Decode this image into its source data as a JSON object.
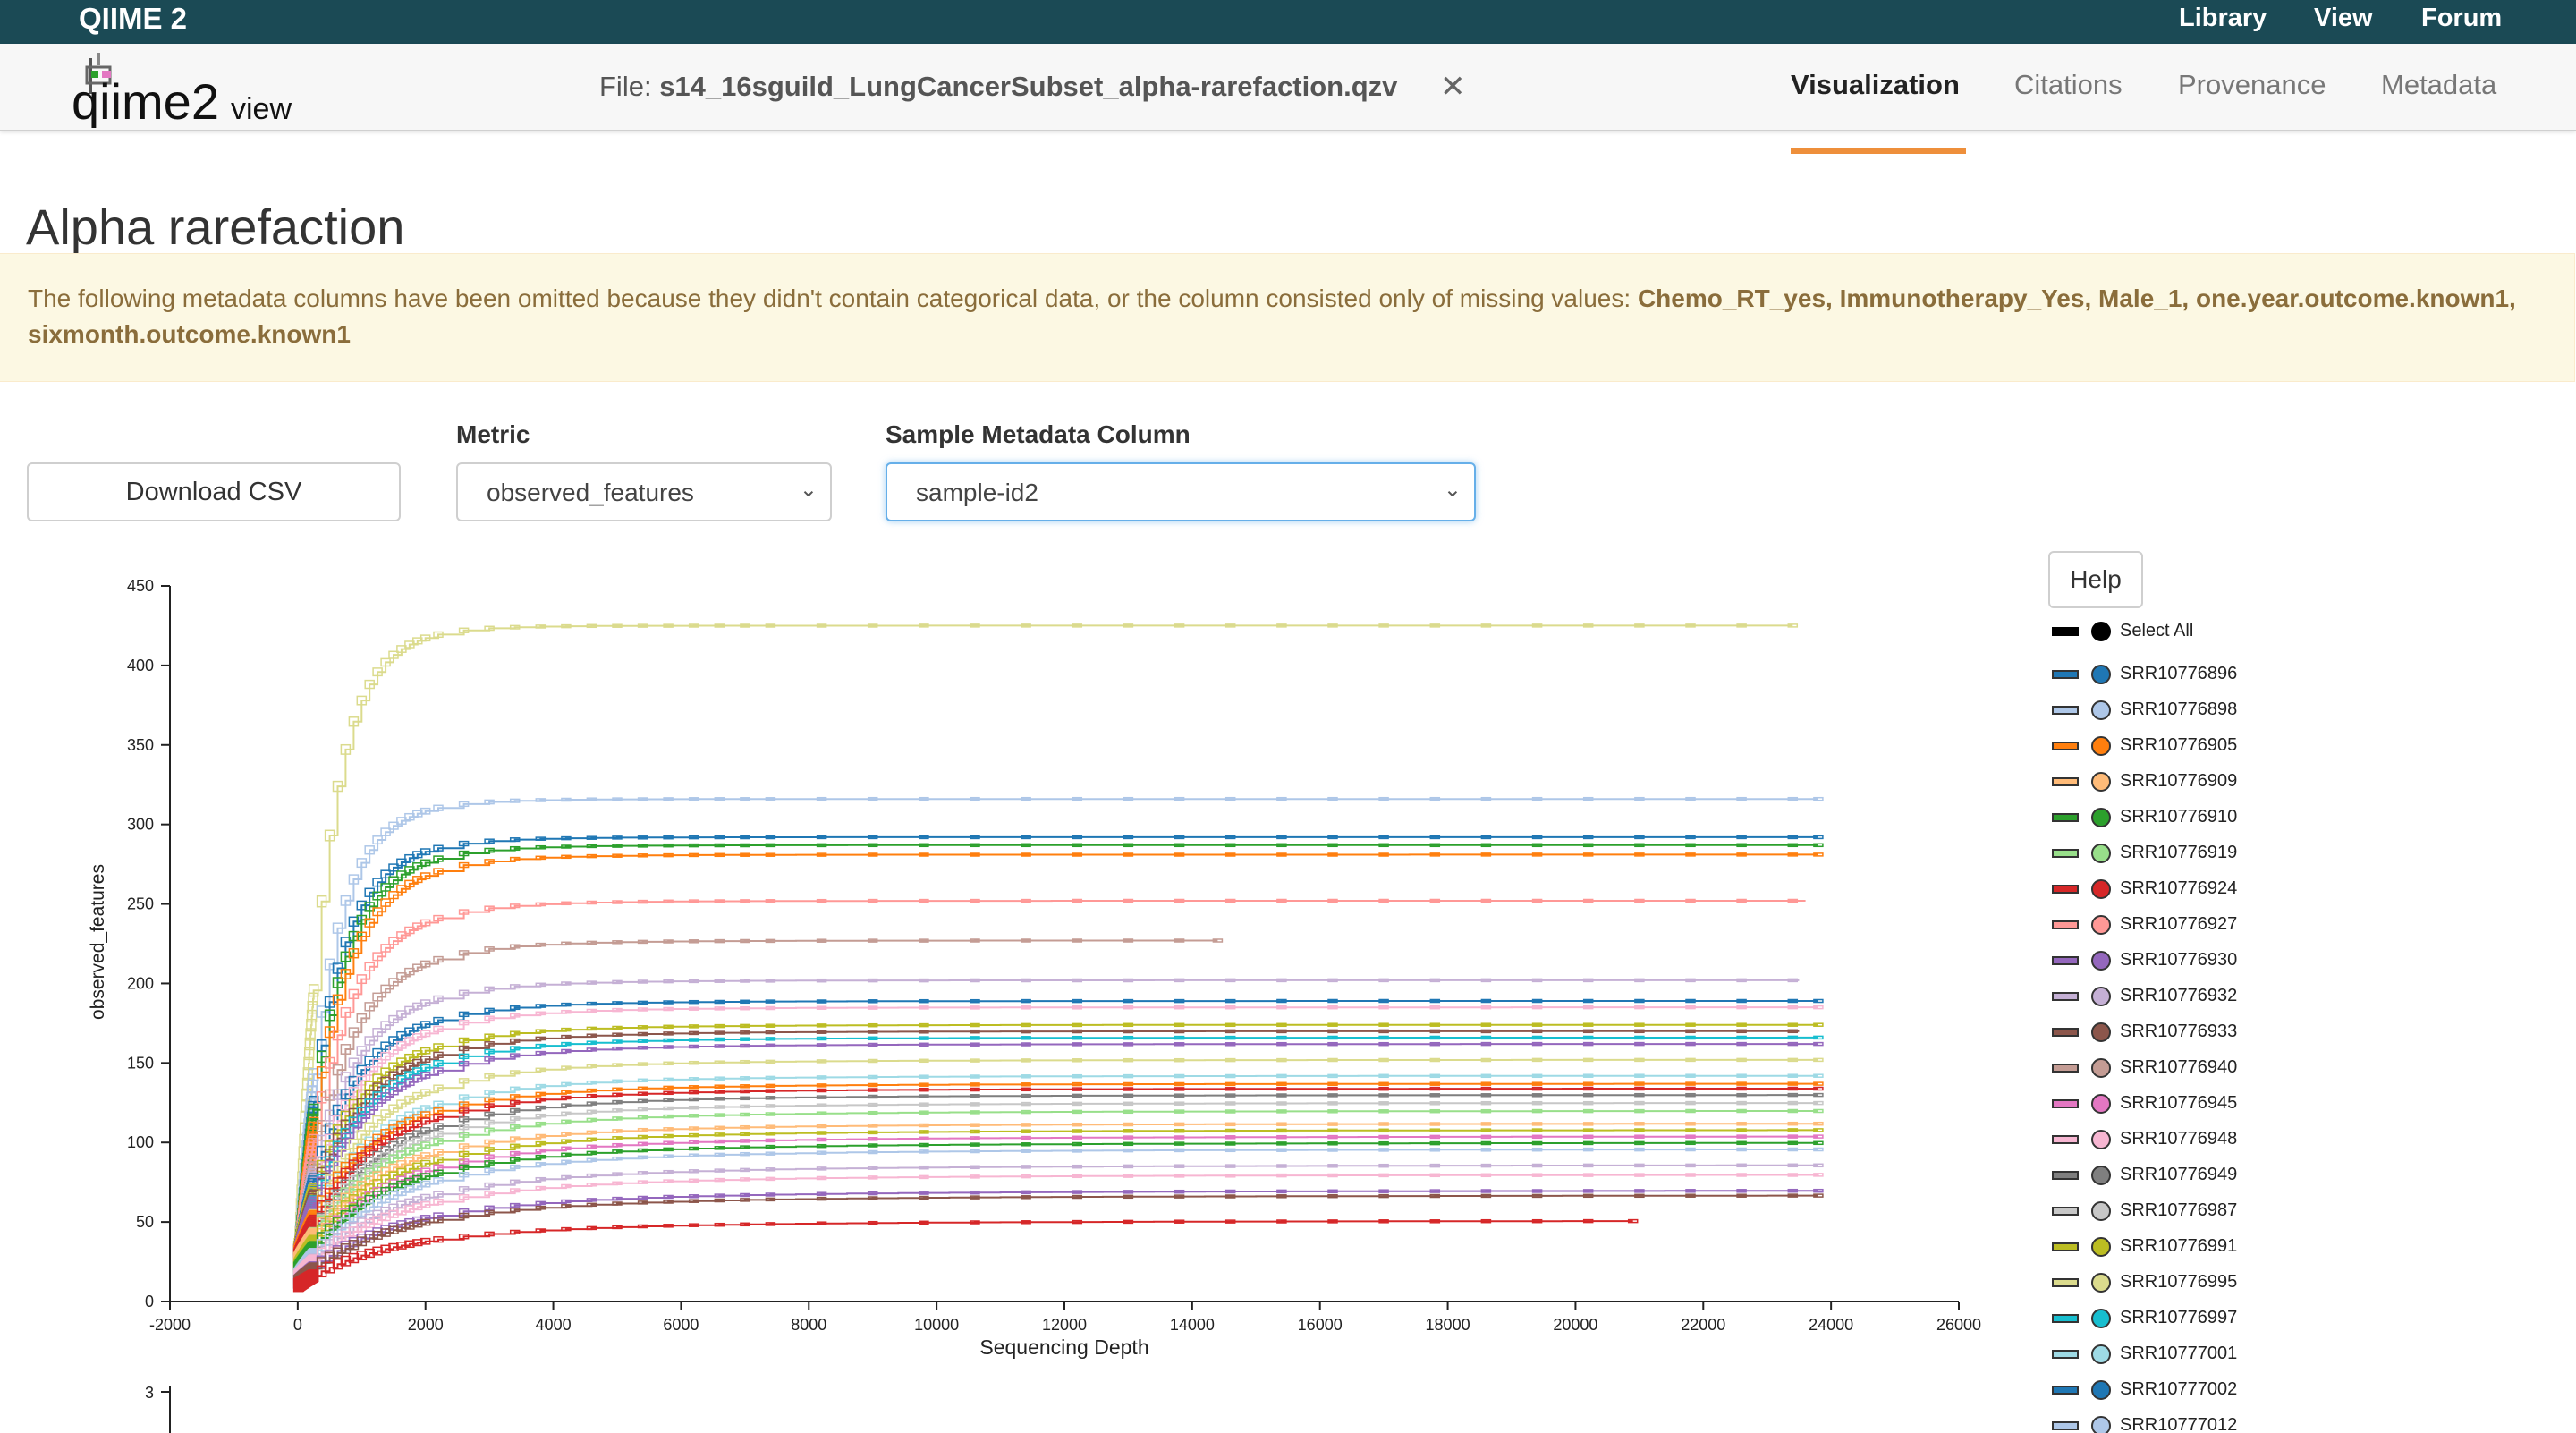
{
  "topbar": {
    "brand": "QIIME 2",
    "links": [
      "Library",
      "View",
      "Forum"
    ]
  },
  "nav": {
    "logo_main": "qiime2",
    "logo_sub": "view",
    "file_prefix": "File: ",
    "file_name": "s14_16sguild_LungCancerSubset_alpha-rarefaction.qzv",
    "close_glyph": "✕",
    "tabs": [
      {
        "label": "Visualization",
        "active": true
      },
      {
        "label": "Citations",
        "active": false
      },
      {
        "label": "Provenance",
        "active": false
      },
      {
        "label": "Metadata",
        "active": false
      }
    ],
    "active_color": "#ee8f3b"
  },
  "page": {
    "title": "Alpha rarefaction"
  },
  "alert": {
    "text": "The following metadata columns have been omitted because they didn't contain categorical data, or the column consisted only of missing values: ",
    "columns": "Chemo_RT_yes, Immunotherapy_Yes, Male_1, one.year.outcome.known1, sixmonth.outcome.known1"
  },
  "controls": {
    "download_label": "Download CSV",
    "metric_label": "Metric",
    "metric_value": "observed_features",
    "column_label": "Sample Metadata Column",
    "column_value": "sample-id2",
    "help_label": "Help",
    "chevron": "⌄"
  },
  "legend": {
    "select_all": "Select All",
    "items": [
      {
        "id": "SRR10776896",
        "color": "#1f77b4"
      },
      {
        "id": "SRR10776898",
        "color": "#aec7e8"
      },
      {
        "id": "SRR10776905",
        "color": "#ff7f0e"
      },
      {
        "id": "SRR10776909",
        "color": "#ffbb78"
      },
      {
        "id": "SRR10776910",
        "color": "#2ca02c"
      },
      {
        "id": "SRR10776919",
        "color": "#98df8a"
      },
      {
        "id": "SRR10776924",
        "color": "#d62728"
      },
      {
        "id": "SRR10776927",
        "color": "#ff9896"
      },
      {
        "id": "SRR10776930",
        "color": "#9467bd"
      },
      {
        "id": "SRR10776932",
        "color": "#c5b0d5"
      },
      {
        "id": "SRR10776933",
        "color": "#8c564b"
      },
      {
        "id": "SRR10776940",
        "color": "#c49c94"
      },
      {
        "id": "SRR10776945",
        "color": "#e377c2"
      },
      {
        "id": "SRR10776948",
        "color": "#f7b6d2"
      },
      {
        "id": "SRR10776949",
        "color": "#7f7f7f"
      },
      {
        "id": "SRR10776987",
        "color": "#c7c7c7"
      },
      {
        "id": "SRR10776991",
        "color": "#bcbd22"
      },
      {
        "id": "SRR10776995",
        "color": "#dbdb8d"
      },
      {
        "id": "SRR10776997",
        "color": "#17becf"
      },
      {
        "id": "SRR10777001",
        "color": "#9edae5"
      },
      {
        "id": "SRR10777002",
        "color": "#1f77b4"
      },
      {
        "id": "SRR10777012",
        "color": "#aec7e8"
      }
    ]
  },
  "chart_data": {
    "type": "line",
    "xlabel": "Sequencing Depth",
    "ylabel": "observed_features",
    "xlim": [
      -2000,
      26000
    ],
    "ylim": [
      0,
      450
    ],
    "xticks": [
      "-2000",
      "0",
      "2000",
      "4000",
      "6000",
      "8000",
      "10000",
      "12000",
      "14000",
      "16000",
      "18000",
      "20000",
      "22000",
      "24000",
      "26000"
    ],
    "yticks": [
      "0",
      "50",
      "100",
      "150",
      "200",
      "250",
      "300",
      "350",
      "400",
      "450"
    ],
    "second_chart_first_ytick": "3",
    "series": [
      {
        "color": "#dbdb8d",
        "max_depth": 23400,
        "plateau": 425,
        "start": 15
      },
      {
        "color": "#aec7e8",
        "max_depth": 23800,
        "plateau": 316,
        "start": 20
      },
      {
        "color": "#1f77b4",
        "max_depth": 23800,
        "plateau": 292,
        "start": 18
      },
      {
        "color": "#2ca02c",
        "max_depth": 23800,
        "plateau": 287,
        "start": 22
      },
      {
        "color": "#ff7f0e",
        "max_depth": 23800,
        "plateau": 281,
        "start": 20
      },
      {
        "color": "#ff9896",
        "max_depth": 23600,
        "plateau": 252,
        "start": 25
      },
      {
        "color": "#c49c94",
        "max_depth": 14400,
        "plateau": 227,
        "start": 20
      },
      {
        "color": "#c5b0d5",
        "max_depth": 23500,
        "plateau": 202,
        "start": 28
      },
      {
        "color": "#1f77b4",
        "max_depth": 23800,
        "plateau": 189,
        "start": 30
      },
      {
        "color": "#f7b6d2",
        "max_depth": 23800,
        "plateau": 185,
        "start": 26
      },
      {
        "color": "#bcbd22",
        "max_depth": 23800,
        "plateau": 174,
        "start": 32
      },
      {
        "color": "#8c564b",
        "max_depth": 23500,
        "plateau": 170,
        "start": 30
      },
      {
        "color": "#17becf",
        "max_depth": 23800,
        "plateau": 166,
        "start": 28
      },
      {
        "color": "#9467bd",
        "max_depth": 23800,
        "plateau": 162,
        "start": 30
      },
      {
        "color": "#dbdb8d",
        "max_depth": 23800,
        "plateau": 152,
        "start": 24
      },
      {
        "color": "#9edae5",
        "max_depth": 23800,
        "plateau": 142,
        "start": 22
      },
      {
        "color": "#ff7f0e",
        "max_depth": 23800,
        "plateau": 137,
        "start": 30
      },
      {
        "color": "#d62728",
        "max_depth": 23800,
        "plateau": 134,
        "start": 28
      },
      {
        "color": "#7f7f7f",
        "max_depth": 23800,
        "plateau": 130,
        "start": 20
      },
      {
        "color": "#c7c7c7",
        "max_depth": 23800,
        "plateau": 125,
        "start": 22
      },
      {
        "color": "#98df8a",
        "max_depth": 23800,
        "plateau": 120,
        "start": 24
      },
      {
        "color": "#ffbb78",
        "max_depth": 23800,
        "plateau": 112,
        "start": 26
      },
      {
        "color": "#bcbd22",
        "max_depth": 23800,
        "plateau": 108,
        "start": 22
      },
      {
        "color": "#e377c2",
        "max_depth": 23800,
        "plateau": 104,
        "start": 18
      },
      {
        "color": "#2ca02c",
        "max_depth": 23800,
        "plateau": 100,
        "start": 20
      },
      {
        "color": "#aec7e8",
        "max_depth": 23800,
        "plateau": 96,
        "start": 16
      },
      {
        "color": "#c5b0d5",
        "max_depth": 23800,
        "plateau": 86,
        "start": 14
      },
      {
        "color": "#f7b6d2",
        "max_depth": 23800,
        "plateau": 80,
        "start": 15
      },
      {
        "color": "#9467bd",
        "max_depth": 23800,
        "plateau": 70,
        "start": 12
      },
      {
        "color": "#8c564b",
        "max_depth": 23800,
        "plateau": 67,
        "start": 12
      },
      {
        "color": "#d62728",
        "max_depth": 20900,
        "plateau": 51,
        "start": 10
      }
    ]
  }
}
